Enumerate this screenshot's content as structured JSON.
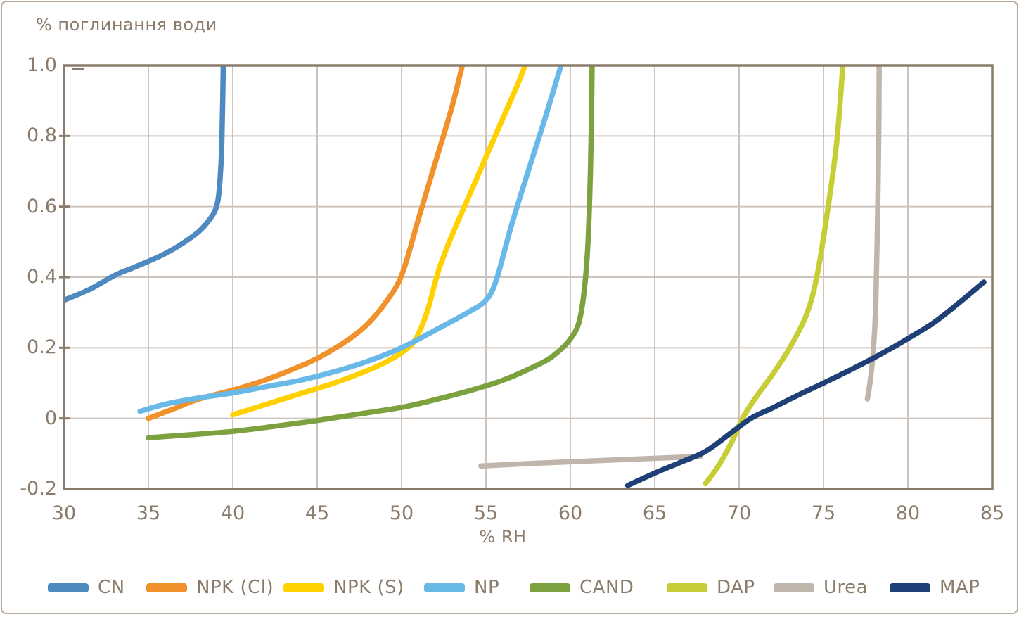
{
  "chart": {
    "title": "% поглинання води",
    "xlabel": "% RH"
  },
  "chart_data": {
    "type": "line",
    "title": "% поглинання води",
    "xlabel": "% RH",
    "ylabel": "% поглинання води",
    "xlim": [
      30,
      85
    ],
    "ylim": [
      -0.2,
      1.0
    ],
    "xticks": [
      30,
      35,
      40,
      45,
      50,
      55,
      60,
      65,
      70,
      75,
      80,
      85
    ],
    "ytick_values": [
      -0.2,
      0,
      0.2,
      0.4,
      0.6,
      0.8,
      1.0
    ],
    "ytick_labels": [
      "-0.2",
      "0",
      "0.2",
      "0.4",
      "0.6",
      "0.8",
      "1.0"
    ],
    "grid": true,
    "legend_position": "bottom",
    "axis_color": "#8a7b6b",
    "grid_color": "#cdc5bd",
    "background_color": "#ffffff",
    "series": [
      {
        "name": "CN",
        "color": "#4e89c0",
        "segments": [
          [
            [
              30,
              0.335
            ],
            [
              31.5,
              0.365
            ],
            [
              33,
              0.405
            ],
            [
              34,
              0.425
            ],
            [
              35,
              0.445
            ],
            [
              36,
              0.467
            ],
            [
              37,
              0.495
            ],
            [
              38,
              0.53
            ],
            [
              38.6,
              0.562
            ],
            [
              39,
              0.595
            ],
            [
              39.2,
              0.65
            ],
            [
              39.35,
              0.78
            ],
            [
              39.45,
              1.04
            ]
          ]
        ]
      },
      {
        "name": "NPK (Cl)",
        "color": "#f0912c",
        "segments": [
          [
            [
              35,
              0.0
            ],
            [
              36.5,
              0.027
            ],
            [
              38,
              0.055
            ],
            [
              40,
              0.08
            ],
            [
              42,
              0.11
            ],
            [
              44,
              0.148
            ],
            [
              45,
              0.17
            ],
            [
              46,
              0.197
            ],
            [
              47,
              0.228
            ],
            [
              48,
              0.268
            ],
            [
              49,
              0.325
            ],
            [
              50,
              0.405
            ],
            [
              51,
              0.565
            ],
            [
              52,
              0.725
            ],
            [
              53,
              0.885
            ],
            [
              53.8,
              1.04
            ]
          ]
        ]
      },
      {
        "name": "NPK (S)",
        "color": "#ffd100",
        "segments": [
          [
            [
              40,
              0.01
            ],
            [
              42,
              0.04
            ],
            [
              44,
              0.07
            ],
            [
              46,
              0.1
            ],
            [
              48,
              0.136
            ],
            [
              49,
              0.158
            ],
            [
              50,
              0.186
            ],
            [
              50.8,
              0.222
            ],
            [
              51.5,
              0.3
            ],
            [
              52.2,
              0.42
            ],
            [
              53,
              0.52
            ],
            [
              54,
              0.63
            ],
            [
              55,
              0.74
            ],
            [
              56,
              0.85
            ],
            [
              57,
              0.96
            ],
            [
              57.6,
              1.04
            ]
          ]
        ]
      },
      {
        "name": "NP",
        "color": "#68b9e8",
        "segments": [
          [
            [
              34.5,
              0.02
            ],
            [
              36,
              0.04
            ],
            [
              38,
              0.058
            ],
            [
              40,
              0.072
            ],
            [
              42,
              0.09
            ],
            [
              44,
              0.108
            ],
            [
              46,
              0.132
            ],
            [
              48,
              0.162
            ],
            [
              50,
              0.2
            ],
            [
              52,
              0.25
            ],
            [
              54,
              0.302
            ],
            [
              55,
              0.335
            ],
            [
              55.6,
              0.39
            ],
            [
              56.5,
              0.545
            ],
            [
              57.5,
              0.7
            ],
            [
              58.5,
              0.85
            ],
            [
              59.7,
              1.04
            ]
          ]
        ]
      },
      {
        "name": "CAND",
        "color": "#7ea140",
        "segments": [
          [
            [
              35,
              -0.055
            ],
            [
              37,
              -0.048
            ],
            [
              40,
              -0.037
            ],
            [
              43,
              -0.019
            ],
            [
              45,
              -0.006
            ],
            [
              47,
              0.009
            ],
            [
              50,
              0.031
            ],
            [
              52,
              0.053
            ],
            [
              54,
              0.078
            ],
            [
              56,
              0.108
            ],
            [
              58,
              0.15
            ],
            [
              59,
              0.178
            ],
            [
              60,
              0.225
            ],
            [
              60.6,
              0.29
            ],
            [
              61,
              0.46
            ],
            [
              61.2,
              0.72
            ],
            [
              61.3,
              1.04
            ]
          ]
        ]
      },
      {
        "name": "DAP",
        "color": "#c7cd34",
        "segments": [
          [
            [
              68,
              -0.185
            ],
            [
              68.7,
              -0.14
            ],
            [
              69.5,
              -0.073
            ],
            [
              70.2,
              0.0
            ],
            [
              71,
              0.06
            ],
            [
              72,
              0.126
            ],
            [
              73,
              0.2
            ],
            [
              74,
              0.295
            ],
            [
              74.6,
              0.4
            ],
            [
              75.2,
              0.575
            ],
            [
              75.8,
              0.79
            ],
            [
              76.2,
              1.04
            ]
          ]
        ]
      },
      {
        "name": "Urea",
        "color": "#bfb5ab",
        "segments": [
          [
            [
              54.7,
              -0.135
            ],
            [
              58,
              -0.127
            ],
            [
              61,
              -0.121
            ],
            [
              64,
              -0.115
            ],
            [
              67.7,
              -0.108
            ]
          ],
          [
            [
              77.6,
              0.055
            ],
            [
              77.75,
              0.1
            ],
            [
              77.95,
              0.19
            ],
            [
              78.1,
              0.33
            ],
            [
              78.2,
              0.56
            ],
            [
              78.28,
              0.82
            ],
            [
              78.3,
              1.04
            ]
          ]
        ]
      },
      {
        "name": "MAP",
        "color": "#1f4077",
        "segments": [
          [
            [
              63.4,
              -0.19
            ],
            [
              65,
              -0.155
            ],
            [
              66.5,
              -0.125
            ],
            [
              68,
              -0.094
            ],
            [
              69.5,
              -0.042
            ],
            [
              70.7,
              0.0
            ],
            [
              72,
              0.03
            ],
            [
              73.5,
              0.066
            ],
            [
              75,
              0.1
            ],
            [
              76.5,
              0.135
            ],
            [
              78,
              0.172
            ],
            [
              79,
              0.198
            ],
            [
              80,
              0.226
            ],
            [
              81.5,
              0.27
            ],
            [
              83,
              0.326
            ],
            [
              84.5,
              0.386
            ]
          ]
        ]
      }
    ]
  }
}
